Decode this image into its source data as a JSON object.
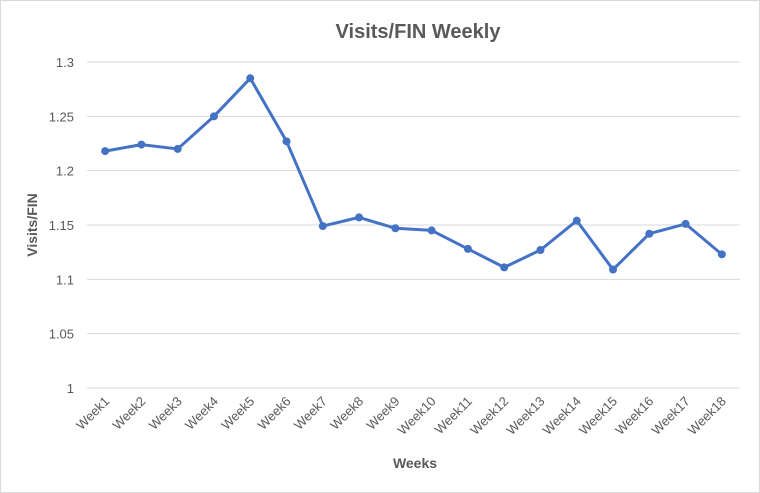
{
  "chart_data": {
    "type": "line",
    "title": "Visits/FIN Weekly",
    "xlabel": "Weeks",
    "ylabel": "Visits/FIN",
    "categories": [
      "Week1",
      "Week2",
      "Week3",
      "Week4",
      "Week5",
      "Week6",
      "Week7",
      "Week8",
      "Week9",
      "Week10",
      "Week11",
      "Week12",
      "Week13",
      "Week14",
      "Week15",
      "Week16",
      "Week17",
      "Week18"
    ],
    "series": [
      {
        "values": [
          1.218,
          1.224,
          1.22,
          1.25,
          1.285,
          1.227,
          1.149,
          1.157,
          1.147,
          1.145,
          1.128,
          1.111,
          1.127,
          1.154,
          1.109,
          1.142,
          1.151,
          1.123
        ]
      }
    ],
    "ylim": [
      1,
      1.3
    ],
    "yticks": [
      "1",
      "1.05",
      "1.1",
      "1.15",
      "1.2",
      "1.25",
      "1.3"
    ],
    "grid": true,
    "legend": "none",
    "colors": {
      "line": "#4472c4",
      "grid": "#d9d9d9",
      "text": "#595959"
    }
  }
}
